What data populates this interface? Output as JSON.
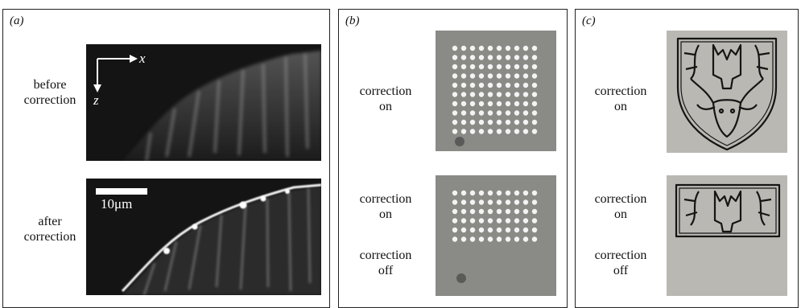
{
  "panels": {
    "a": {
      "label": "(a)",
      "before_label": [
        "before",
        "correction"
      ],
      "after_label": [
        "after",
        "correction"
      ],
      "axis_x": "x",
      "axis_z": "z",
      "scale_bar": "10μm"
    },
    "b": {
      "label": "(b)",
      "top_label": [
        "correction",
        "on"
      ],
      "bottom_on_label": [
        "correction",
        "on"
      ],
      "bottom_off_label": [
        "correction",
        "off"
      ]
    },
    "c": {
      "label": "(c)",
      "top_label": [
        "correction",
        "on"
      ],
      "bottom_on_label": [
        "correction",
        "on"
      ],
      "bottom_off_label": [
        "correction",
        "off"
      ]
    }
  },
  "colors": {
    "background": "#ffffff",
    "frame": "#222222",
    "micrograph_dark": "#141414",
    "micrograph_gray": "#8a8a86"
  }
}
